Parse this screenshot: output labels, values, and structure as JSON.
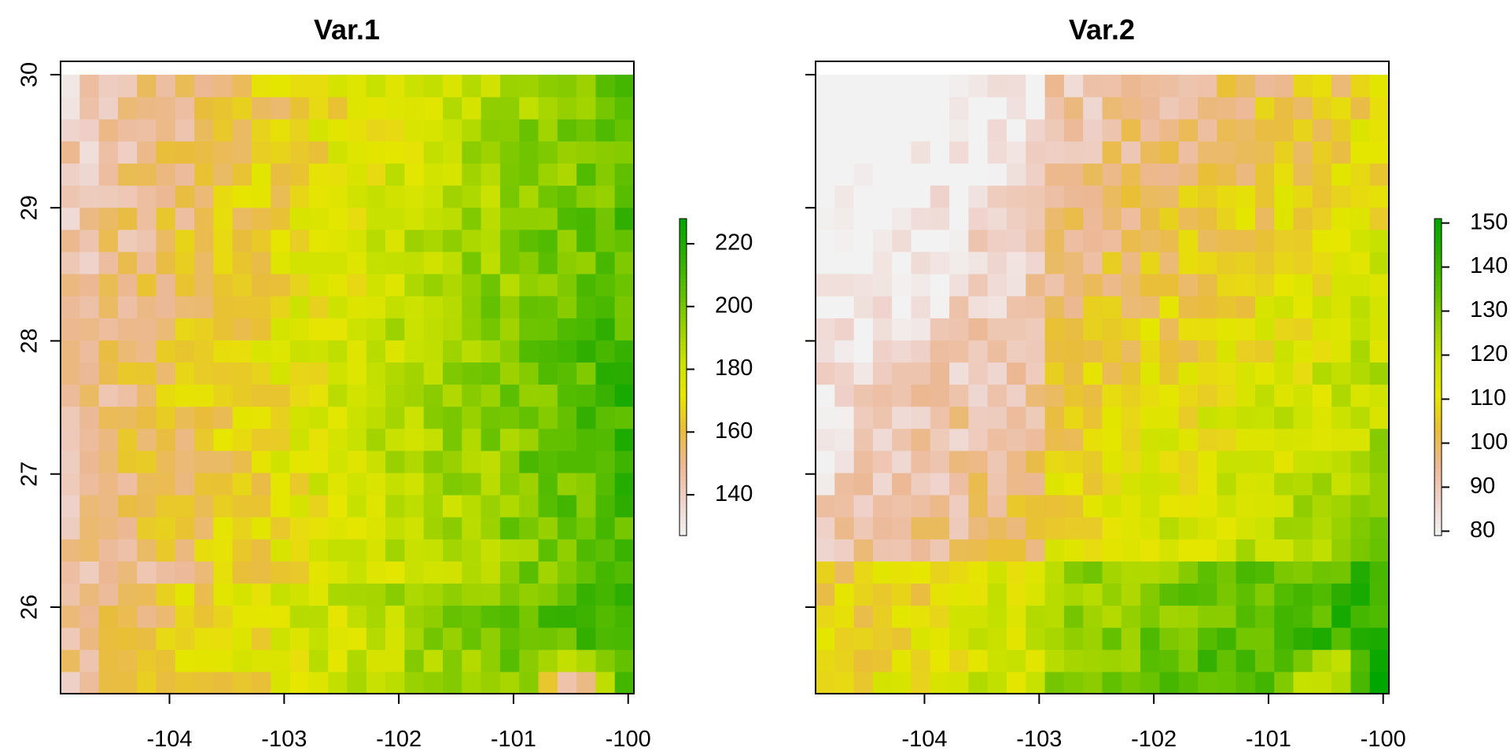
{
  "chart_data": [
    {
      "type": "heatmap",
      "title": "Var.1",
      "xlabel": "",
      "ylabel": "",
      "xlim": [
        -104.95,
        -99.95
      ],
      "ylim": [
        25.35,
        30.1
      ],
      "x_extent": [
        -104.95,
        -99.95
      ],
      "y_extent": [
        25.35,
        30.0
      ],
      "x_ticks": [
        -104,
        -103,
        -102,
        -101,
        -100
      ],
      "x_tick_labels": [
        "-104",
        "-103",
        "-102",
        "-101",
        "-100"
      ],
      "y_ticks": [
        26,
        27,
        28,
        29,
        30
      ],
      "y_tick_labels": [
        "26",
        "27",
        "28",
        "29",
        "30"
      ],
      "zlim": [
        127,
        228
      ],
      "legend_ticks": [
        140,
        160,
        180,
        200,
        220
      ],
      "legend_tick_labels": [
        "140",
        "160",
        "180",
        "200",
        "220"
      ],
      "legend_position": "right",
      "grid": false,
      "colorscale": [
        "#F2F2F2",
        "#EFD2CB",
        "#ECB894",
        "#E9BD3A",
        "#E6E600",
        "#C8E100",
        "#93CF00",
        "#5ABE00",
        "#2CAD00",
        "#00A600"
      ],
      "values_description": "Yellow-green west, saturated green east; pale pink/white spot near -100.5, 25.4"
    },
    {
      "type": "heatmap",
      "title": "Var.2",
      "xlabel": "",
      "ylabel": "",
      "xlim": [
        -104.95,
        -99.95
      ],
      "ylim": [
        25.35,
        30.1
      ],
      "x_extent": [
        -104.95,
        -99.95
      ],
      "y_extent": [
        25.35,
        30.0
      ],
      "x_ticks": [
        -104,
        -103,
        -102,
        -101,
        -100
      ],
      "x_tick_labels": [
        "-104",
        "-103",
        "-102",
        "-101",
        "-100"
      ],
      "y_ticks": [
        26,
        27,
        28,
        29,
        30
      ],
      "y_tick_labels": [
        "26",
        "27",
        "28",
        "29",
        "30"
      ],
      "zlim": [
        79,
        151
      ],
      "legend_ticks": [
        80,
        90,
        100,
        110,
        120,
        130,
        140,
        150
      ],
      "legend_tick_labels": [
        "80",
        "90",
        "100",
        "110",
        "120",
        "130",
        "140",
        "150"
      ],
      "legend_position": "right",
      "grid": false,
      "colorscale": [
        "#F2F2F2",
        "#EFD2CB",
        "#ECB894",
        "#E9BD3A",
        "#E6E600",
        "#C8E100",
        "#93CF00",
        "#5ABE00",
        "#2CAD00",
        "#00A600"
      ]
    }
  ]
}
